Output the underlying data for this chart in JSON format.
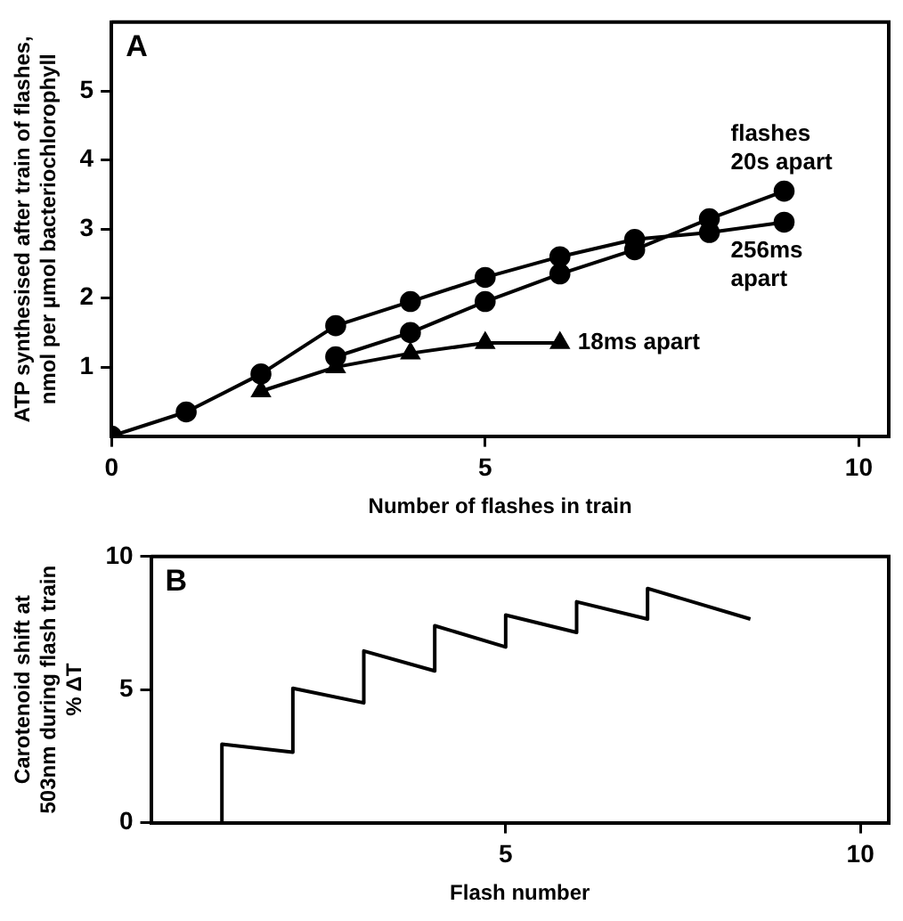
{
  "chart_data": [
    {
      "type": "line",
      "title": "A",
      "xlabel": "Number of flashes in train",
      "ylabel": "ATP synthesised after train of flashes, nmol per µmol bacteriochlorophyll",
      "xlim": [
        0,
        10.4
      ],
      "ylim": [
        0,
        6
      ],
      "xticks": [
        0,
        5,
        10
      ],
      "yticks": [
        1,
        2,
        3,
        4,
        5
      ],
      "grid": false,
      "legend": false,
      "series": [
        {
          "name": "256ms apart",
          "color": "#000000",
          "marker": "circle",
          "x": [
            0,
            1,
            2,
            3,
            4,
            5,
            6,
            7,
            8,
            9
          ],
          "values": [
            0,
            0.35,
            0.9,
            1.6,
            1.95,
            2.3,
            2.6,
            2.85,
            2.95,
            3.1
          ]
        },
        {
          "name": "flashes 20s apart",
          "color": "#000000",
          "marker": "circle",
          "x": [
            3,
            4,
            5,
            6,
            7,
            8,
            9
          ],
          "values": [
            1.15,
            1.5,
            1.95,
            2.35,
            2.7,
            3.15,
            3.55
          ]
        },
        {
          "name": "18ms apart",
          "color": "#000000",
          "marker": "triangle",
          "x": [
            2,
            3,
            4,
            5,
            6
          ],
          "values": [
            0.65,
            1.0,
            1.2,
            1.35,
            1.35
          ]
        }
      ]
    },
    {
      "type": "line",
      "title": "B",
      "xlabel": "Flash number",
      "ylabel": "Carotenoid shift at 503nm during flash train % ΔT",
      "xlim": [
        0,
        10.4
      ],
      "ylim": [
        0,
        10
      ],
      "xticks": [
        5,
        10
      ],
      "yticks": [
        0,
        5,
        10
      ],
      "grid": false,
      "legend": false,
      "marker": "none",
      "series": [
        {
          "color": "#000000",
          "x": [
            1,
            1,
            2,
            2,
            3,
            3,
            4,
            4,
            5,
            5,
            6,
            6,
            7,
            7,
            8.45
          ],
          "values": [
            0,
            2.95,
            2.65,
            5.05,
            4.5,
            6.45,
            5.7,
            7.4,
            6.6,
            7.8,
            7.15,
            8.3,
            7.65,
            8.8,
            7.65
          ]
        }
      ]
    }
  ]
}
